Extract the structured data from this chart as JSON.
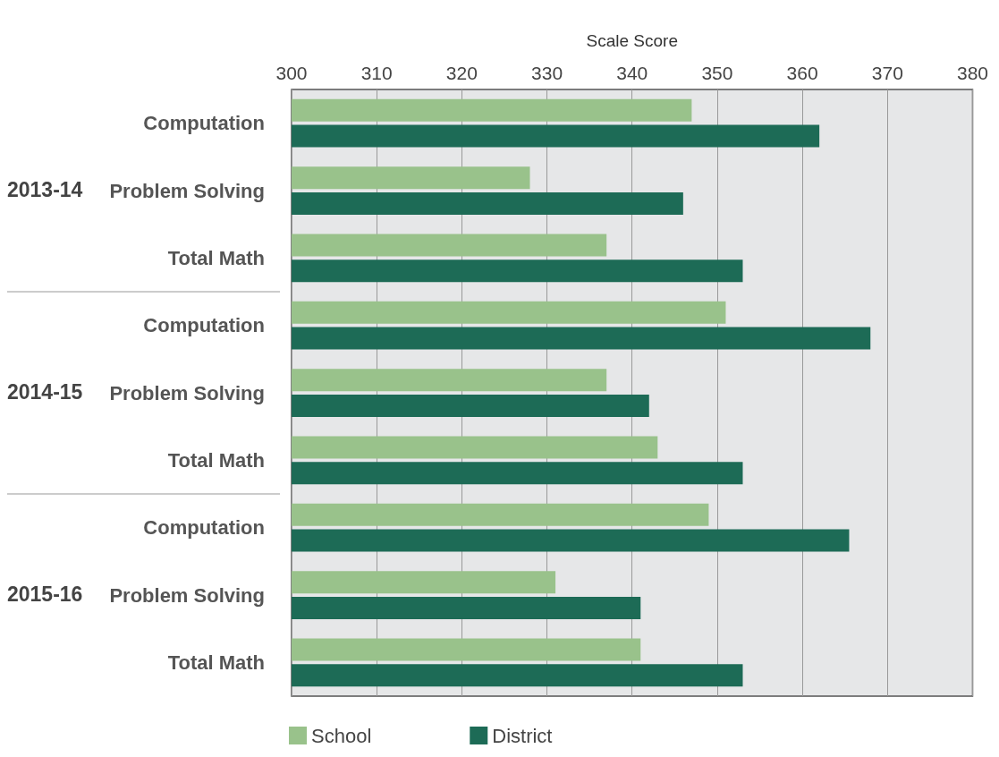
{
  "chart_data": {
    "type": "bar",
    "orientation": "horizontal",
    "xlabel": "Scale Score",
    "categories": [
      "Computation",
      "Problem Solving",
      "Total Math",
      "Computation",
      "Problem Solving",
      "Total Math",
      "Computation",
      "Problem Solving",
      "Total Math"
    ],
    "series": [
      {
        "name": "School",
        "color": "#99c28b",
        "values": [
          347,
          328,
          337,
          351,
          337,
          343,
          349,
          331,
          341
        ]
      },
      {
        "name": "District",
        "color": "#1d6b56",
        "values": [
          362,
          346,
          353,
          368,
          342,
          353,
          365.5,
          341,
          353
        ]
      }
    ],
    "annotations": [
      "2013-14",
      "2014-15",
      "2015-16"
    ],
    "xlim": [
      300,
      380
    ],
    "xticks": [
      300,
      310,
      320,
      330,
      340,
      350,
      360,
      370,
      380
    ],
    "grid": "x",
    "legend": "bottom"
  }
}
